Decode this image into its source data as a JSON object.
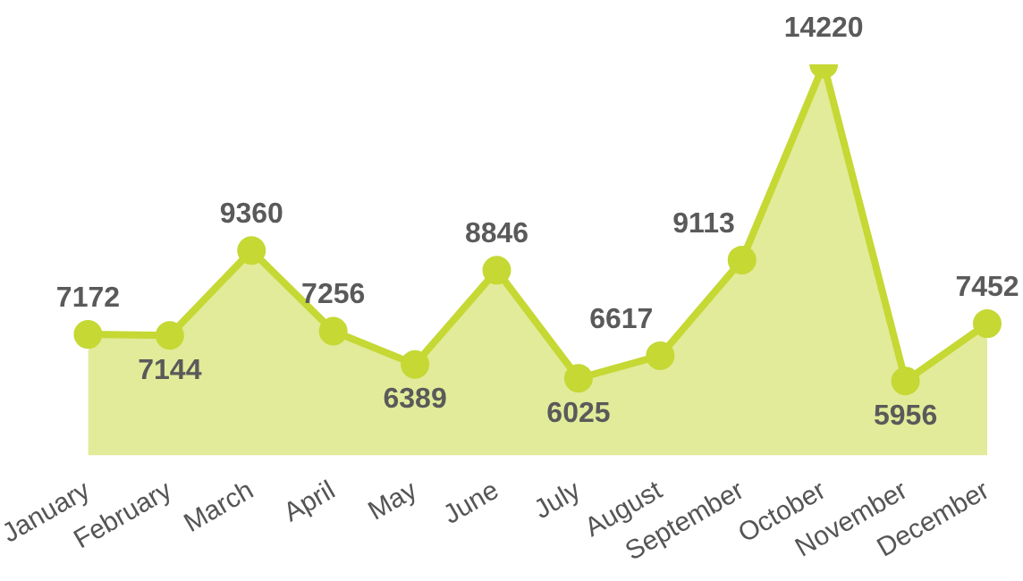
{
  "chart_data": {
    "type": "area",
    "categories": [
      "January",
      "February",
      "March",
      "April",
      "May",
      "June",
      "July",
      "August",
      "September",
      "October",
      "November",
      "December"
    ],
    "values": [
      7172,
      7144,
      9360,
      7256,
      6389,
      8846,
      6025,
      6617,
      9113,
      14220,
      5956,
      7452
    ],
    "color": "#c5d834",
    "marker": "circle",
    "data_labels": true,
    "tick_labels": "x",
    "grid": false,
    "legend": false
  }
}
